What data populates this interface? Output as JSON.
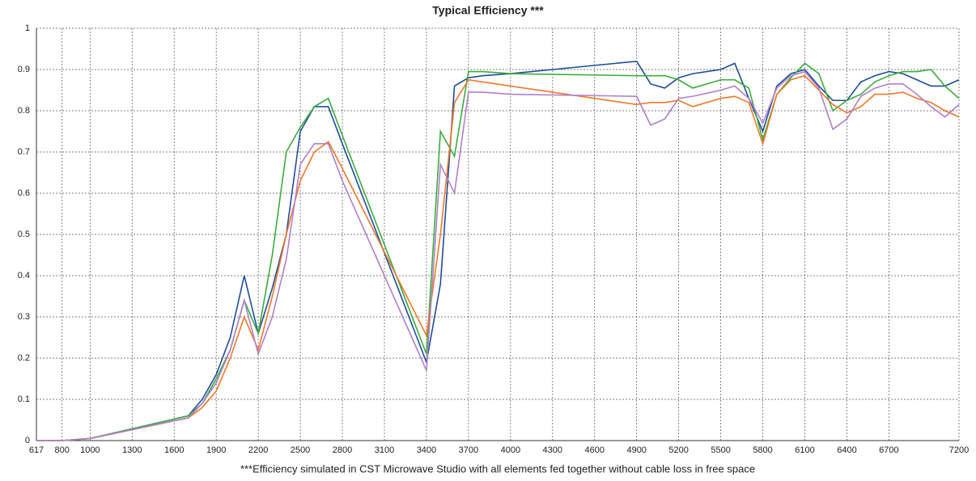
{
  "chart_data": {
    "type": "line",
    "title": "Typical Efficiency ***",
    "footnote": "***Efficiency simulated in CST Microwave Studio with all elements fed together without cable loss in free space",
    "x": [
      617,
      800,
      1000,
      1700,
      1800,
      1900,
      2000,
      2100,
      2200,
      2300,
      2400,
      2500,
      2600,
      2700,
      2800,
      3400,
      3500,
      3600,
      3700,
      3800,
      4000,
      4900,
      5000,
      5100,
      5200,
      5300,
      5500,
      5600,
      5700,
      5800,
      5900,
      6000,
      6100,
      6200,
      6300,
      6400,
      6500,
      6600,
      6700,
      6800,
      6900,
      7000,
      7100,
      7200
    ],
    "series": [
      {
        "color": "#1f4e9c",
        "values": [
          0,
          0,
          0.005,
          0.06,
          0.1,
          0.16,
          0.25,
          0.4,
          0.26,
          0.37,
          0.5,
          0.75,
          0.81,
          0.81,
          0.72,
          0.19,
          0.38,
          0.86,
          0.88,
          0.885,
          0.89,
          0.92,
          0.865,
          0.855,
          0.88,
          0.89,
          0.9,
          0.915,
          0.83,
          0.75,
          0.86,
          0.89,
          0.9,
          0.86,
          0.825,
          0.825,
          0.87,
          0.885,
          0.895,
          0.89,
          0.875,
          0.86,
          0.86,
          0.875
        ]
      },
      {
        "color": "#3cac3c",
        "values": [
          0,
          0,
          0.005,
          0.06,
          0.09,
          0.15,
          0.22,
          0.34,
          0.26,
          0.45,
          0.7,
          0.76,
          0.81,
          0.83,
          0.74,
          0.21,
          0.75,
          0.69,
          0.895,
          0.895,
          0.89,
          0.885,
          0.885,
          0.885,
          0.875,
          0.855,
          0.875,
          0.875,
          0.855,
          0.73,
          0.84,
          0.88,
          0.915,
          0.89,
          0.8,
          0.825,
          0.84,
          0.87,
          0.885,
          0.895,
          0.895,
          0.9,
          0.86,
          0.83
        ]
      },
      {
        "color": "#f07828",
        "values": [
          0,
          0,
          0.005,
          0.055,
          0.08,
          0.12,
          0.2,
          0.3,
          0.22,
          0.35,
          0.5,
          0.63,
          0.7,
          0.725,
          0.66,
          0.255,
          0.5,
          0.82,
          0.875,
          0.87,
          0.86,
          0.815,
          0.82,
          0.82,
          0.825,
          0.81,
          0.83,
          0.835,
          0.82,
          0.72,
          0.84,
          0.875,
          0.885,
          0.85,
          0.815,
          0.795,
          0.81,
          0.84,
          0.84,
          0.845,
          0.83,
          0.82,
          0.8,
          0.785
        ]
      },
      {
        "color": "#b080c8",
        "values": [
          0,
          0,
          0.005,
          0.055,
          0.09,
          0.14,
          0.22,
          0.34,
          0.21,
          0.3,
          0.44,
          0.67,
          0.72,
          0.72,
          0.63,
          0.17,
          0.67,
          0.6,
          0.845,
          0.845,
          0.84,
          0.835,
          0.765,
          0.78,
          0.83,
          0.835,
          0.85,
          0.86,
          0.83,
          0.77,
          0.855,
          0.885,
          0.895,
          0.855,
          0.755,
          0.78,
          0.835,
          0.855,
          0.865,
          0.865,
          0.84,
          0.81,
          0.785,
          0.815
        ]
      }
    ],
    "xlim": [
      617,
      7200
    ],
    "xticks": [
      617,
      800,
      1000,
      1300,
      1600,
      1900,
      2200,
      2500,
      2800,
      3100,
      3400,
      3700,
      4000,
      4300,
      4600,
      4900,
      5200,
      5500,
      5800,
      6100,
      6400,
      6700,
      7200
    ],
    "ylim": [
      0,
      1
    ],
    "yticks": [
      0,
      0.1,
      0.2,
      0.3,
      0.4,
      0.5,
      0.6,
      0.7,
      0.8,
      0.9,
      1
    ],
    "grid": true
  }
}
